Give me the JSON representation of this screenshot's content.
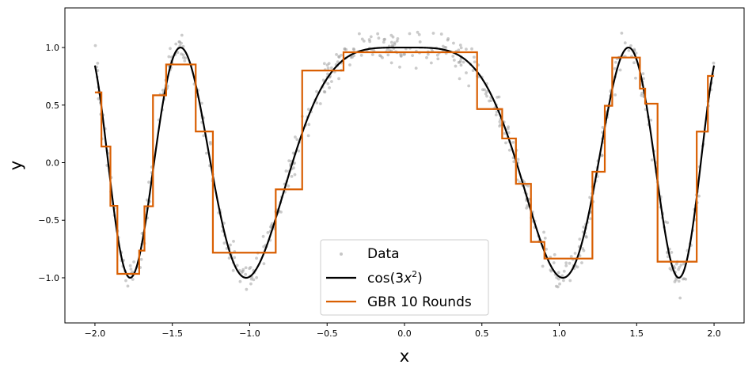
{
  "chart_data": {
    "type": "line",
    "title": "",
    "xlabel": "x",
    "ylabel": "y",
    "xlim": [
      -2.194,
      2.194
    ],
    "ylim": [
      -1.392,
      1.344
    ],
    "xticks": [
      -2.0,
      -1.5,
      -1.0,
      -0.5,
      0.0,
      0.5,
      1.0,
      1.5,
      2.0
    ],
    "xtick_labels": [
      "−2.0",
      "−1.5",
      "−1.0",
      "−0.5",
      "0.0",
      "0.5",
      "1.0",
      "1.5",
      "2.0"
    ],
    "yticks": [
      -1.0,
      -0.5,
      0.0,
      0.5,
      1.0
    ],
    "ytick_labels": [
      "−1.0",
      "−0.5",
      "0.0",
      "0.5",
      "1.0"
    ],
    "grid": false,
    "legend_placement": "bottom-center",
    "series": [
      {
        "name": "Data",
        "type": "scatter",
        "function": "cos(3x^2)+noise",
        "n_points": 600,
        "noise_sd": 0.07,
        "x_range": [
          -2,
          2
        ],
        "color": "#a0a0a0"
      },
      {
        "name": "cos(3x²)",
        "type": "line",
        "function": "cos(3x^2)",
        "x_range": [
          -2,
          2
        ],
        "color": "#000000"
      },
      {
        "name": "GBR 10 Rounds",
        "type": "step",
        "color": "#d95f02",
        "breaks": [
          -2.0,
          -1.958,
          -1.9,
          -1.855,
          -1.714,
          -1.68,
          -1.625,
          -1.54,
          -1.349,
          -1.238,
          -0.832,
          -0.661,
          -0.394,
          0.469,
          0.631,
          0.72,
          0.817,
          0.904,
          1.214,
          1.294,
          1.342,
          1.521,
          1.555,
          1.635,
          1.888,
          1.96,
          2.0
        ],
        "values": [
          0.61,
          0.14,
          -0.375,
          -0.966,
          -0.764,
          -0.379,
          0.585,
          0.853,
          0.271,
          -0.782,
          -0.232,
          0.8,
          0.959,
          0.466,
          0.21,
          -0.184,
          -0.688,
          -0.833,
          -0.079,
          0.494,
          0.913,
          0.643,
          0.512,
          -0.86,
          0.27,
          0.753
        ]
      }
    ],
    "legend": {
      "data": "Data",
      "cos_prefix": "cos(3",
      "cos_var": "x",
      "cos_sup": "2",
      "cos_suffix": ")",
      "gbr": "GBR 10 Rounds"
    }
  }
}
